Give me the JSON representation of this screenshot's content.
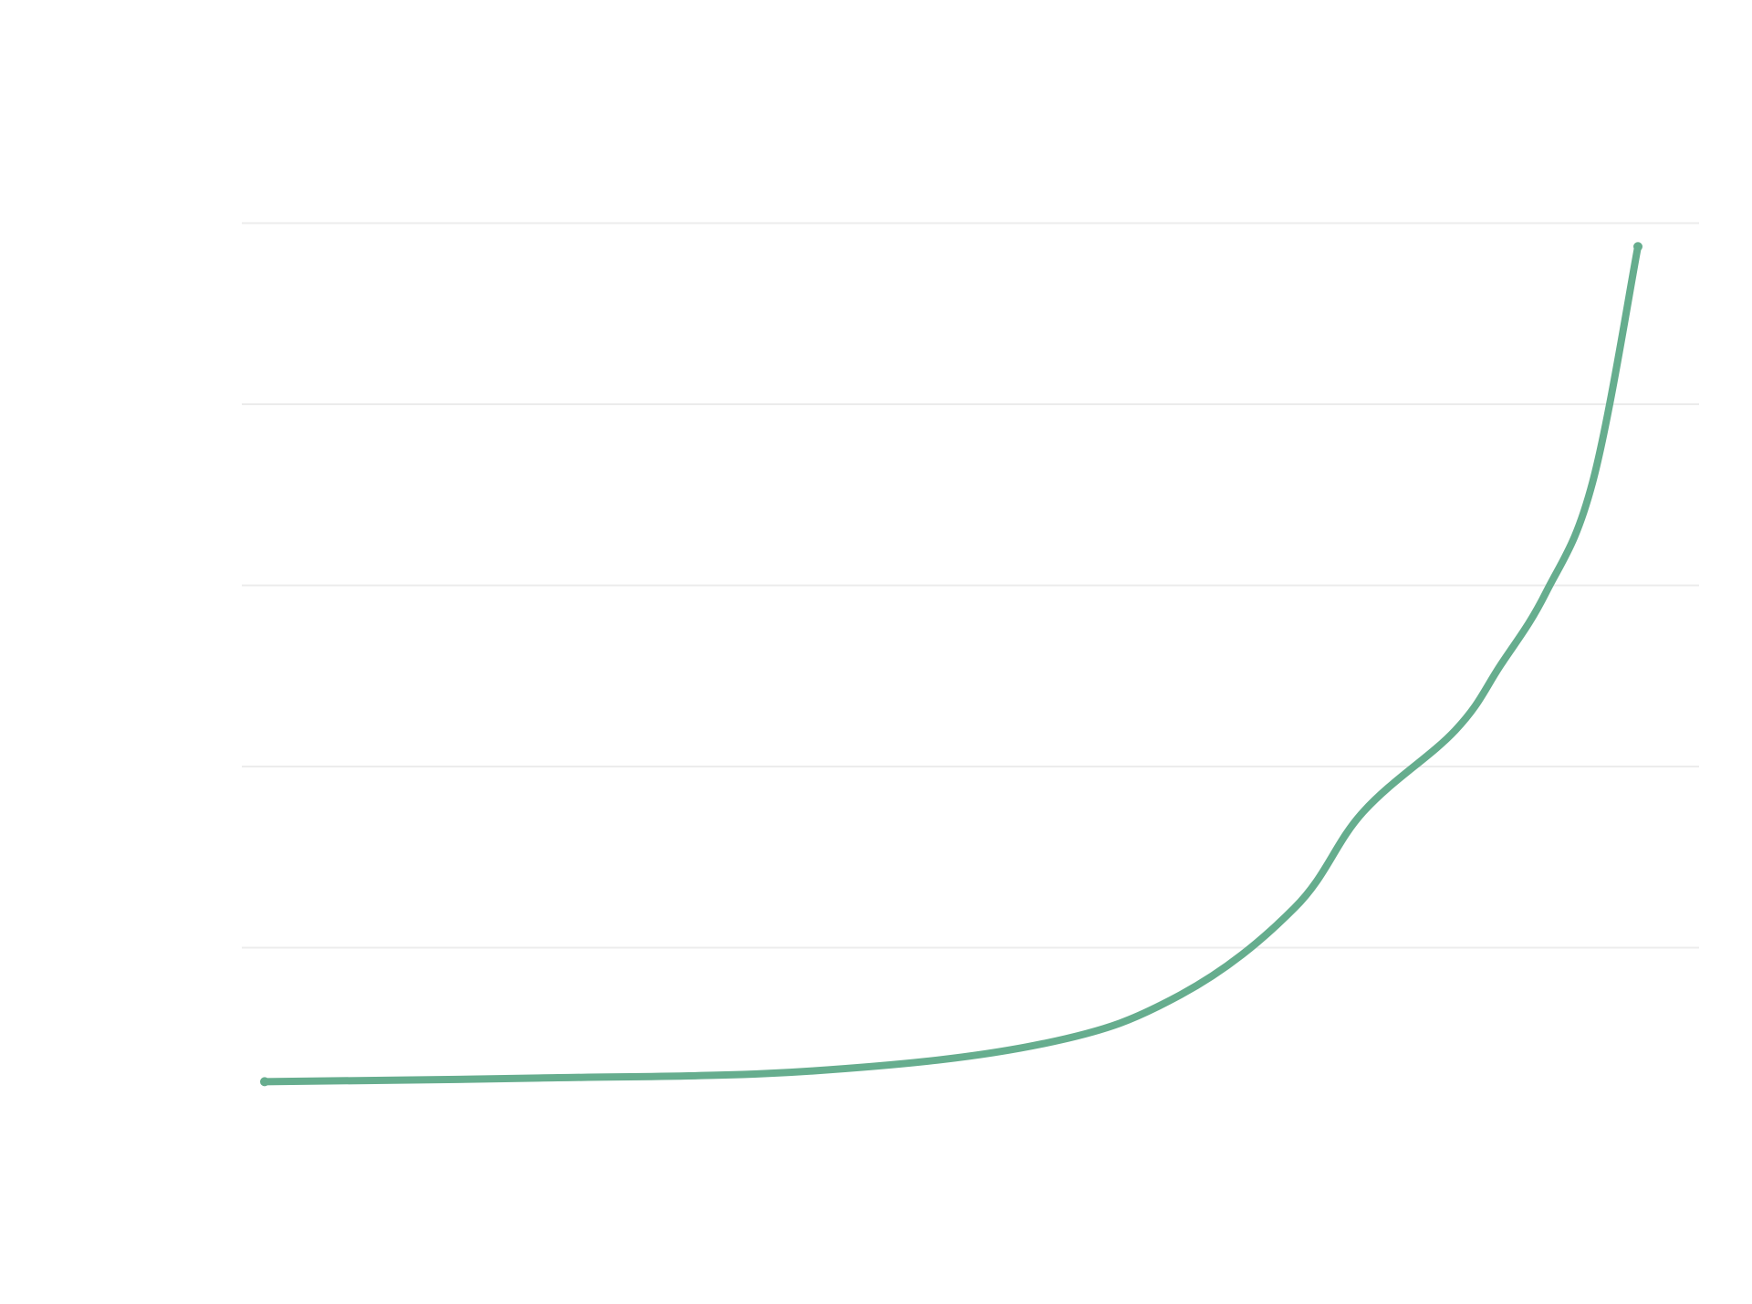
{
  "chart_data": {
    "type": "line",
    "title": "",
    "xlabel": "",
    "ylabel": "",
    "ylim": [
      0,
      5
    ],
    "grid": true,
    "gridlines_y": [
      1,
      2,
      3,
      4,
      5
    ],
    "colors": {
      "series": "#66ad8e",
      "grid": "#ececec"
    },
    "series": [
      {
        "values": [
          [
            0,
            0.26
          ],
          [
            2,
            0.28
          ],
          [
            4,
            0.32
          ],
          [
            5.67,
            0.47
          ],
          [
            6.67,
            0.74
          ],
          [
            7.5,
            1.22
          ],
          [
            8,
            1.75
          ],
          [
            8.67,
            2.2
          ],
          [
            9,
            2.56
          ],
          [
            9.33,
            2.96
          ],
          [
            9.67,
            3.57
          ],
          [
            10,
            4.87
          ]
        ]
      }
    ]
  }
}
